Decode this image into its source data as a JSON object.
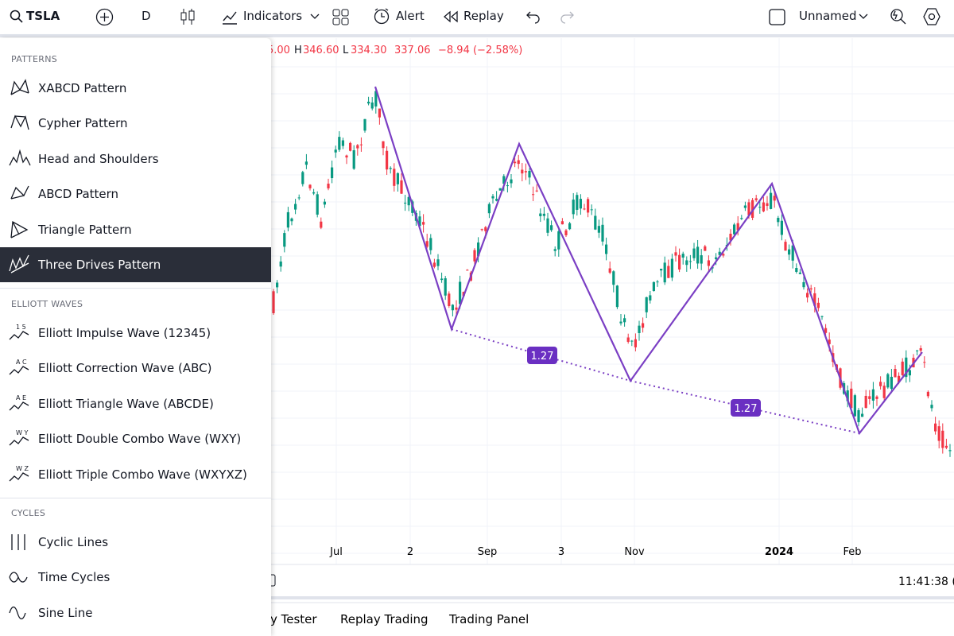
{
  "toolbar": {
    "symbol": "TSLA",
    "interval": "D",
    "indicators": "Indicators",
    "alert": "Alert",
    "replay": "Replay",
    "layout_name": "Unnamed"
  },
  "legend": {
    "open": "5.00",
    "high_label": "H",
    "high": "346.60",
    "low_label": "L",
    "low": "334.30",
    "close": "337.06",
    "change": "−8.94 (−2.58%)"
  },
  "menu": {
    "sections": [
      {
        "title": "PATTERNS",
        "items": [
          {
            "label": "XABCD Pattern"
          },
          {
            "label": "Cypher Pattern"
          },
          {
            "label": "Head and Shoulders"
          },
          {
            "label": "ABCD Pattern"
          },
          {
            "label": "Triangle Pattern"
          },
          {
            "label": "Three Drives Pattern",
            "selected": true
          }
        ]
      },
      {
        "title": "ELLIOTT WAVES",
        "items": [
          {
            "label": "Elliott Impulse Wave (12345)",
            "icon_text": "1 5"
          },
          {
            "label": "Elliott Correction Wave (ABC)",
            "icon_text": "A C"
          },
          {
            "label": "Elliott Triangle Wave (ABCDE)",
            "icon_text": "A E"
          },
          {
            "label": "Elliott Double Combo Wave (WXY)",
            "icon_text": "W Y"
          },
          {
            "label": "Elliott Triple Combo Wave (WXYXZ)",
            "icon_text": "W Z"
          }
        ]
      },
      {
        "title": "CYCLES",
        "items": [
          {
            "label": "Cyclic Lines"
          },
          {
            "label": "Time Cycles"
          },
          {
            "label": "Sine Line"
          }
        ]
      }
    ]
  },
  "chart": {
    "ratio_labels": [
      "1.27",
      "1.27"
    ],
    "time_axis": [
      "Jul",
      "2",
      "Sep",
      "3",
      "Nov",
      "2024",
      "Feb"
    ],
    "clock": "11:41:38 ("
  },
  "bottom_tabs": [
    "y Tester",
    "Replay Trading",
    "Trading Panel"
  ]
}
